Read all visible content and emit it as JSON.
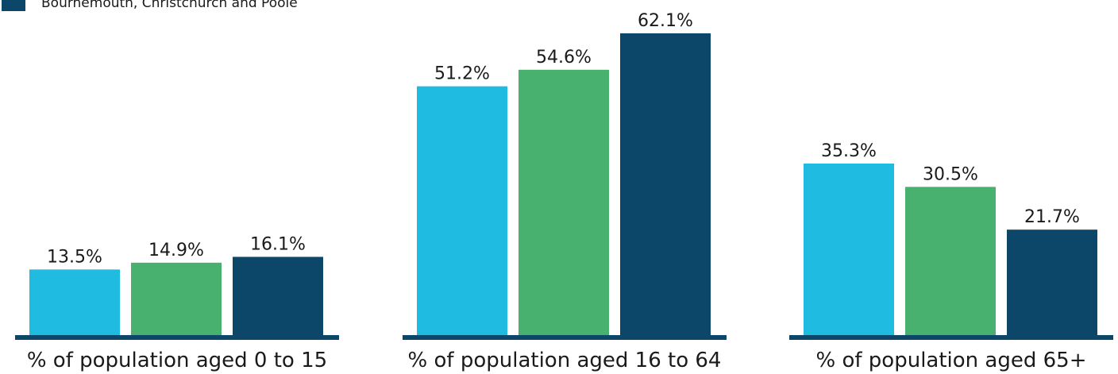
{
  "chart_data": {
    "type": "bar",
    "title": "",
    "xlabel": "",
    "ylabel": "",
    "legend_position": "top-left",
    "grid": false,
    "ylim": [
      0,
      65
    ],
    "categories": [
      "% of population aged 0 to 15",
      "% of population aged 16 to 64",
      "% of population aged 65+"
    ],
    "series": [
      {
        "name": "",
        "color": "#1fbbe0",
        "values": [
          13.5,
          51.2,
          35.3
        ],
        "labels": [
          "13.5%",
          "51.2%",
          "35.3%"
        ]
      },
      {
        "name": "",
        "color": "#48b170",
        "values": [
          14.9,
          54.6,
          30.5
        ],
        "labels": [
          "14.9%",
          "54.6%",
          "30.5%"
        ]
      },
      {
        "name": "Bournemouth, Christchurch and Poole",
        "color": "#0c4669",
        "values": [
          16.1,
          62.1,
          21.7
        ],
        "labels": [
          "16.1%",
          "62.1%",
          "21.7%"
        ]
      }
    ],
    "baseline_color": "#0c4669"
  }
}
